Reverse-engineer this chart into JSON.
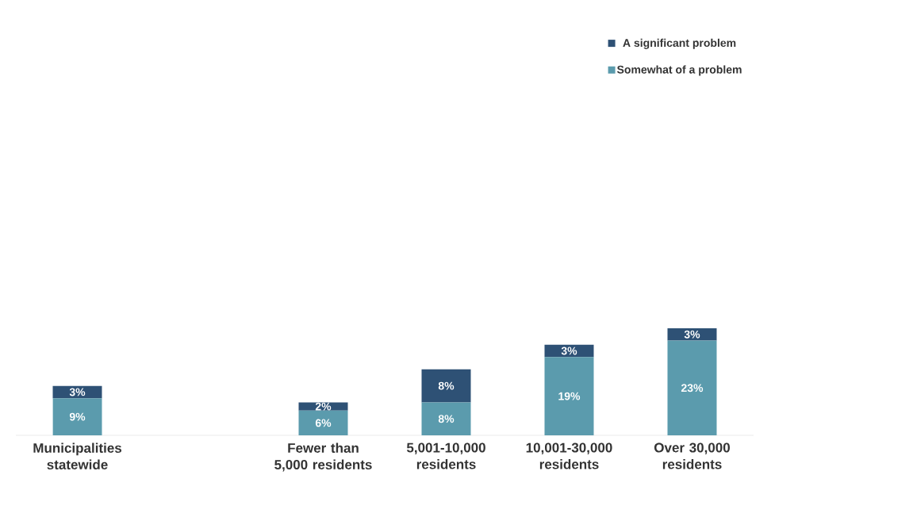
{
  "chart_data": {
    "type": "bar",
    "stacked": true,
    "categories": [
      "Municipalities statewide",
      null,
      "Fewer than 5,000 residents",
      "5,001-10,000 residents",
      "10,001-30,000 residents",
      "Over 30,000 residents"
    ],
    "series": [
      {
        "name": "Somewhat of a problem",
        "color": "#5b9bad",
        "values": [
          9,
          null,
          6,
          8,
          19,
          23
        ],
        "value_labels": [
          "9%",
          null,
          "6%",
          "8%",
          "19%",
          "23%"
        ]
      },
      {
        "name": "A significant problem",
        "color": "#2e5175",
        "values": [
          3,
          null,
          2,
          8,
          3,
          3
        ],
        "value_labels": [
          "3%",
          null,
          "2%",
          "8%",
          "3%",
          "3%"
        ]
      }
    ],
    "legend": "top right"
  }
}
